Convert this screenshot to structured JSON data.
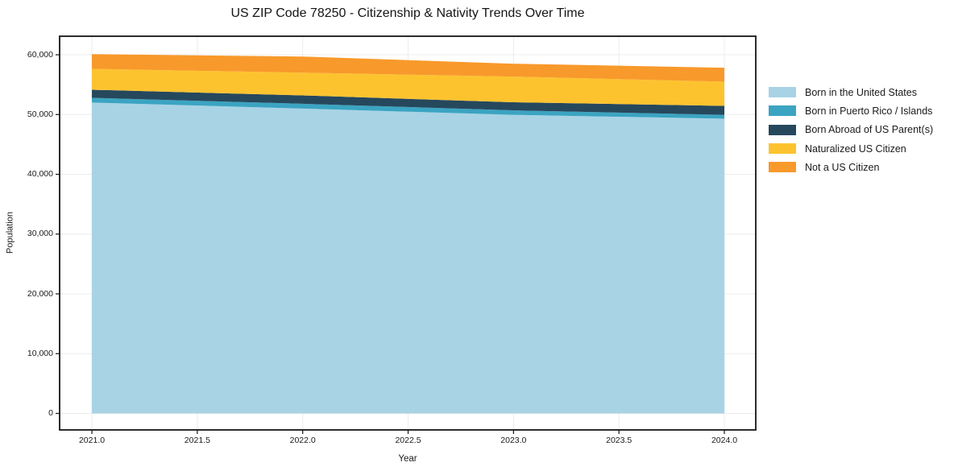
{
  "chart": {
    "title": "US ZIP Code 78250 - Citizenship & Nativity Trends Over Time",
    "xlabel": "Year",
    "ylabel": "Population"
  },
  "chart_data": {
    "type": "area",
    "stacked": true,
    "title": "US ZIP Code 78250 - Citizenship & Nativity Trends Over Time",
    "xlabel": "Year",
    "ylabel": "Population",
    "x": [
      2021,
      2022,
      2023,
      2024
    ],
    "series": [
      {
        "name": "Born in the United States",
        "color": "#a8d3e5",
        "values": [
          52000,
          51000,
          49950,
          49300
        ]
      },
      {
        "name": "Born in Puerto Rico / Islands",
        "color": "#3ba4c2",
        "values": [
          800,
          800,
          750,
          650
        ]
      },
      {
        "name": "Born Abroad of US Parent(s)",
        "color": "#26485d",
        "values": [
          1350,
          1400,
          1350,
          1500
        ]
      },
      {
        "name": "Naturalized US Citizen",
        "color": "#fdc32f",
        "values": [
          3500,
          3800,
          4300,
          4050
        ]
      },
      {
        "name": "Not a US Citizen",
        "color": "#f8992b",
        "values": [
          2450,
          2700,
          2150,
          2330
        ]
      }
    ],
    "stack_totals": [
      60100,
      59700,
      58500,
      57830
    ],
    "xlim": [
      2020.847,
      2024.149
    ],
    "ylim": [
      -2760,
      63100
    ],
    "x_ticks": [
      {
        "v": 2021.0,
        "label": "2021.0"
      },
      {
        "v": 2021.5,
        "label": "2021.5"
      },
      {
        "v": 2022.0,
        "label": "2022.0"
      },
      {
        "v": 2022.5,
        "label": "2022.5"
      },
      {
        "v": 2023.0,
        "label": "2023.0"
      },
      {
        "v": 2023.5,
        "label": "2023.5"
      },
      {
        "v": 2024.0,
        "label": "2024.0"
      }
    ],
    "y_ticks": [
      {
        "v": 0,
        "label": "0"
      },
      {
        "v": 10000,
        "label": "10,000"
      },
      {
        "v": 20000,
        "label": "20,000"
      },
      {
        "v": 30000,
        "label": "30,000"
      },
      {
        "v": 40000,
        "label": "40,000"
      },
      {
        "v": 50000,
        "label": "50,000"
      },
      {
        "v": 60000,
        "label": "60,000"
      }
    ],
    "grid": true,
    "grid_color": "#ececec",
    "spine_color": "#141414",
    "background": "#ffffff",
    "legend_position": "right"
  }
}
